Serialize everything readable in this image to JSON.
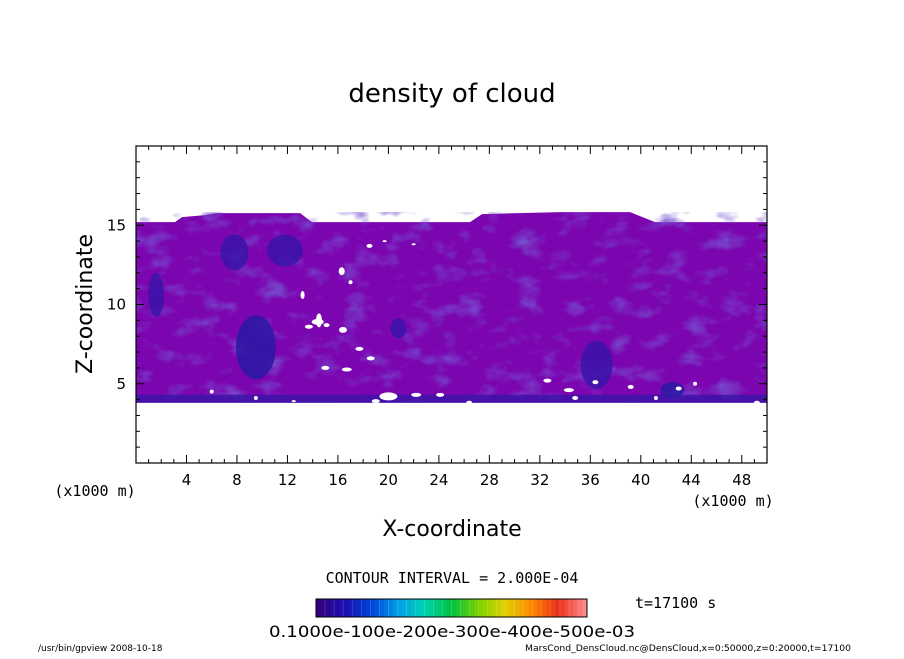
{
  "chart_data": {
    "type": "heatmap",
    "title": "density of cloud",
    "xlabel": "X-coordinate",
    "ylabel": "Z-coordinate",
    "x_unit_left": "(x1000 m)",
    "x_unit_right": "(x1000 m)",
    "xlim": [
      0,
      50
    ],
    "ylim": [
      0,
      20
    ],
    "x_ticks": [
      4,
      8,
      12,
      16,
      20,
      24,
      28,
      32,
      36,
      40,
      44,
      48
    ],
    "y_ticks": [
      5,
      10,
      15
    ],
    "cloud_layer": {
      "base_z": 3.8,
      "top_z": 15.2,
      "dominant_value": 0.00015,
      "colors": {
        "background": "#7b06b0",
        "medium": "#5520b8",
        "dark": "#3a14a8",
        "deep": "#2a18a4"
      }
    },
    "contour_interval": "CONTOUR INTERVAL = 2.000E-04",
    "time_label": "t=17100 s",
    "colorbar": {
      "min": 0.0001,
      "max": 0.0006,
      "tick_text": "0.1000e-100e-200e-300e-400e-500e-03",
      "colors": [
        "#33007f",
        "#1a0fb0",
        "#0044d8",
        "#00a0e8",
        "#00d2b0",
        "#00c040",
        "#7ad200",
        "#e0d000",
        "#ff8a00",
        "#e8301a",
        "#ff8888"
      ]
    },
    "footer_left": "/usr/bin/gpview   2008-10-18",
    "footer_right": "MarsCond_DensCloud.nc@DensCloud,x=0:50000,z=0:20000,t=17100"
  }
}
